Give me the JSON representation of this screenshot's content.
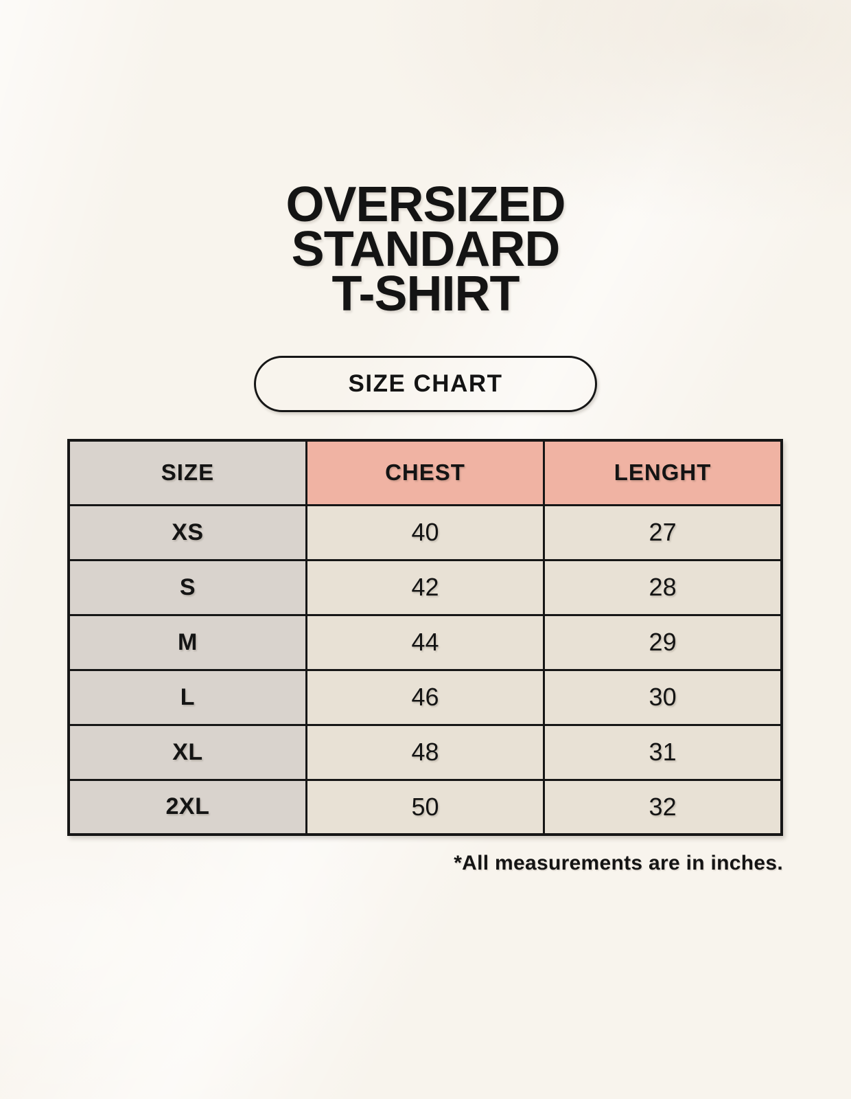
{
  "header": {
    "title_lines": [
      "OVERSIZED",
      "STANDARD",
      "T-SHIRT"
    ],
    "badge_label": "SIZE CHART"
  },
  "table": {
    "column_headers": [
      "SIZE",
      "CHEST",
      "LENGHT"
    ],
    "rows": [
      {
        "size": "XS",
        "chest": "40",
        "length": "27"
      },
      {
        "size": "S",
        "chest": "42",
        "length": "28"
      },
      {
        "size": "M",
        "chest": "44",
        "length": "29"
      },
      {
        "size": "L",
        "chest": "46",
        "length": "30"
      },
      {
        "size": "XL",
        "chest": "48",
        "length": "31"
      },
      {
        "size": "2XL",
        "chest": "50",
        "length": "32"
      }
    ],
    "footnote": "*All measurements are in inches."
  },
  "colors": {
    "background": "#f8f4ed",
    "header_size_bg": "#d9d3cd",
    "header_measure_bg": "#f0b3a3",
    "size_col_bg": "#d9d3cd",
    "data_cell_bg": "#e8e1d5",
    "border_color": "#161616",
    "text_color": "#141414"
  },
  "chart_data": {
    "type": "table",
    "title": "OVERSIZED STANDARD T-SHIRT",
    "subtitle": "SIZE CHART",
    "columns": [
      "SIZE",
      "CHEST",
      "LENGHT"
    ],
    "categories": [
      "XS",
      "S",
      "M",
      "L",
      "XL",
      "2XL"
    ],
    "series": [
      {
        "name": "CHEST",
        "values": [
          40,
          42,
          44,
          46,
          48,
          50
        ]
      },
      {
        "name": "LENGHT",
        "values": [
          27,
          28,
          29,
          30,
          31,
          32
        ]
      }
    ],
    "units": "inches",
    "note": "*All measurements are in inches."
  }
}
